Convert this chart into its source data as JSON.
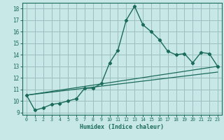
{
  "xlabel": "Humidex (Indice chaleur)",
  "ylabel": "",
  "xlim": [
    -0.5,
    23.5
  ],
  "ylim": [
    8.8,
    18.5
  ],
  "xticks": [
    0,
    1,
    2,
    3,
    4,
    5,
    6,
    7,
    8,
    9,
    10,
    11,
    12,
    13,
    14,
    15,
    16,
    17,
    18,
    19,
    20,
    21,
    22,
    23
  ],
  "yticks": [
    9,
    10,
    11,
    12,
    13,
    14,
    15,
    16,
    17,
    18
  ],
  "bg_color": "#c8e8e8",
  "line_color": "#1a6b5a",
  "grid_color": "#9bbfbf",
  "main_x": [
    0,
    1,
    2,
    3,
    4,
    5,
    6,
    7,
    8,
    9,
    10,
    11,
    12,
    13,
    14,
    15,
    16,
    17,
    18,
    19,
    20,
    21,
    22,
    23
  ],
  "main_y": [
    10.5,
    9.2,
    9.4,
    9.7,
    9.8,
    10.0,
    10.2,
    11.1,
    11.1,
    11.5,
    13.3,
    14.4,
    17.0,
    18.2,
    16.6,
    16.0,
    15.3,
    14.3,
    14.0,
    14.1,
    13.3,
    14.2,
    14.1,
    13.0
  ],
  "line2_x": [
    0,
    23
  ],
  "line2_y": [
    10.5,
    12.5
  ],
  "line3_x": [
    0,
    23
  ],
  "line3_y": [
    10.5,
    13.0
  ],
  "font_color": "#1a6b5a"
}
